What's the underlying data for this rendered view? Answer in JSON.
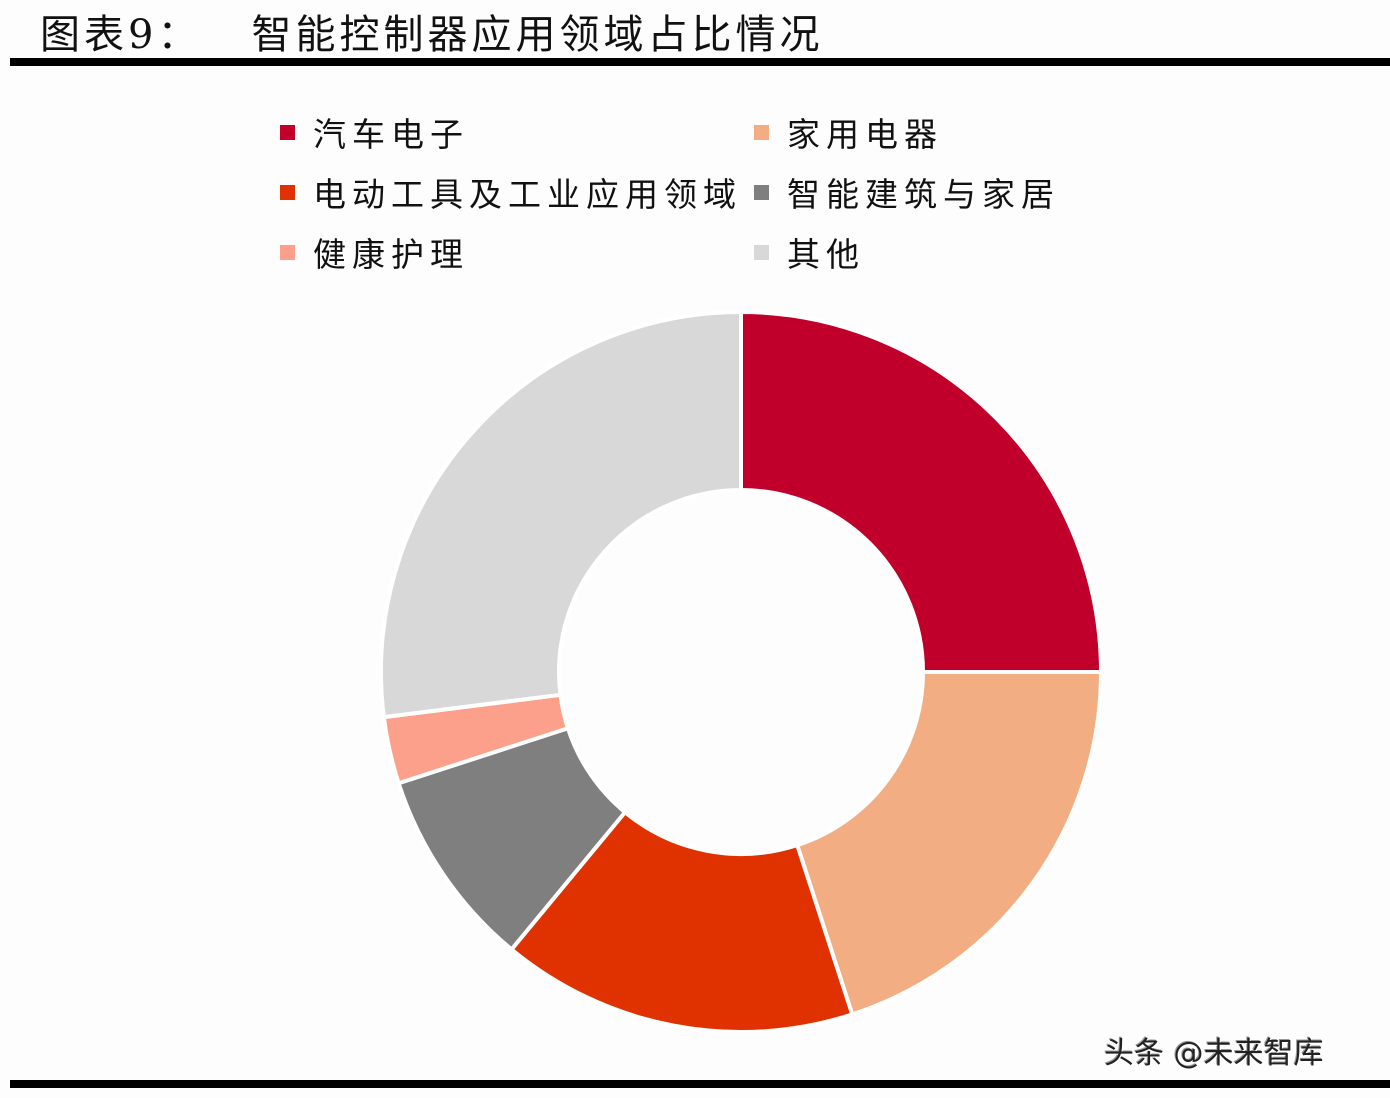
{
  "header": {
    "figure_label": "图表9：",
    "title": "智能控制器应用领域占比情况"
  },
  "watermark": "头条 @未来智库",
  "chart_data": {
    "type": "pie",
    "variant": "donut",
    "title": "图表9：智能控制器应用领域占比情况",
    "categories": [
      "汽车电子",
      "家用电器",
      "电动工具及工业应用领域",
      "智能建筑与家居",
      "健康护理",
      "其他"
    ],
    "values": [
      25,
      20,
      16,
      9,
      3,
      27
    ],
    "unit": "%",
    "colors": [
      "#c0002a",
      "#f2ae82",
      "#e03200",
      "#7f7f7f",
      "#fca08c",
      "#d8d8d8"
    ],
    "start_angle_deg": 0,
    "direction": "clockwise",
    "legend_position": "top",
    "data_labels": false
  },
  "legend": [
    {
      "label": "汽车电子",
      "color": "#c0002a"
    },
    {
      "label": "家用电器",
      "color": "#f2ae82"
    },
    {
      "label": "电动工具及工业应用领域",
      "color": "#e03200"
    },
    {
      "label": "智能建筑与家居",
      "color": "#7f7f7f"
    },
    {
      "label": "健康护理",
      "color": "#fca08c"
    },
    {
      "label": "其他",
      "color": "#d8d8d8"
    }
  ]
}
